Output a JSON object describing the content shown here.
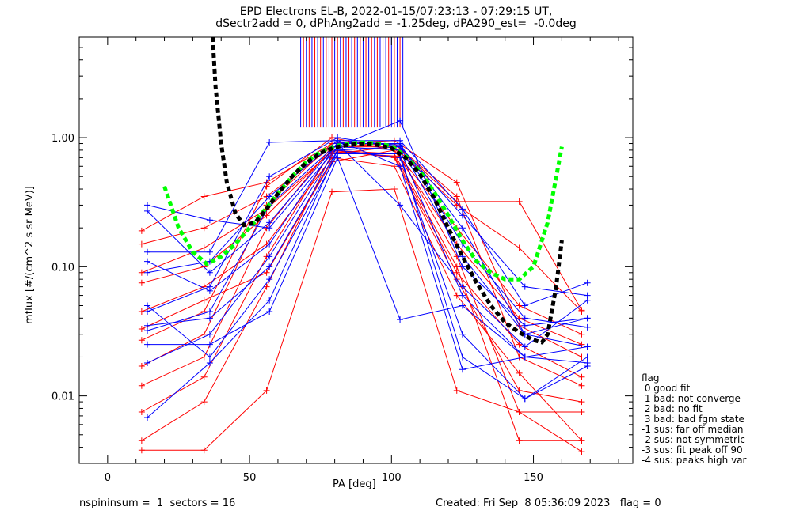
{
  "title_line1": "EPD Electrons EL-B, 2022-01-15/07:23:13 - 07:29:15 UT,",
  "title_line2": "dSectr2add = 0, dPhAng2add = -1.25deg, dPA290_est=  -0.0deg",
  "footer_left": "nspininsum =  1  sectors = 16",
  "footer_right": "Created: Fri Sep  8 05:36:09 2023   flag = 0",
  "legend": {
    "heading": "flag",
    "items": [
      " 0 good fit",
      " 1 bad: not converge",
      " 2 bad: no fit",
      " 3 bad: bad fgm state",
      "-1 sus: far off median",
      "-2 sus: not symmetric",
      "-3 sus: fit peak off 90",
      "-4 sus: peaks high var"
    ]
  },
  "chart_data": {
    "type": "line",
    "xlabel": "PA [deg]",
    "ylabel": "mflux [#/(cm^2 s sr MeV)]",
    "xlim": [
      -10,
      185
    ],
    "ylim": [
      0.003,
      6.0
    ],
    "yscale": "log",
    "xticks": [
      0,
      50,
      100,
      150
    ],
    "xtick_labels": [
      "0",
      "50",
      "100",
      "150"
    ],
    "yticks": [
      0.01,
      0.1,
      1.0
    ],
    "ytick_labels": [
      "0.01",
      "0.10",
      "1.00"
    ],
    "colors": {
      "red": "#ff0000",
      "blue": "#0000ff",
      "green": "#00ff00",
      "black": "#000000"
    },
    "pa_bins": [
      12,
      14,
      34,
      36,
      56,
      57,
      79,
      81,
      101,
      103,
      123,
      125,
      145,
      147,
      167,
      169
    ],
    "series": [
      {
        "color": "red",
        "x": [
          12,
          34,
          56,
          79,
          101,
          123,
          145,
          167
        ],
        "y": [
          0.0045,
          0.009,
          0.07,
          0.75,
          0.85,
          0.12,
          0.0075,
          0.0075
        ]
      },
      {
        "color": "red",
        "x": [
          12,
          34,
          56,
          79,
          101,
          123,
          145,
          167
        ],
        "y": [
          0.0075,
          0.014,
          0.12,
          0.8,
          0.7,
          0.08,
          0.011,
          0.009
        ]
      },
      {
        "color": "red",
        "x": [
          12,
          34,
          56,
          79,
          101,
          123,
          145,
          167
        ],
        "y": [
          0.012,
          0.02,
          0.2,
          0.85,
          0.9,
          0.35,
          0.02,
          0.012
        ]
      },
      {
        "color": "red",
        "x": [
          12,
          34,
          56,
          79,
          101,
          123,
          145,
          167
        ],
        "y": [
          0.017,
          0.03,
          0.3,
          0.9,
          0.95,
          0.45,
          0.035,
          0.02
        ]
      },
      {
        "color": "red",
        "x": [
          12,
          34,
          56,
          79,
          101,
          123,
          145,
          167
        ],
        "y": [
          0.027,
          0.045,
          0.42,
          1.0,
          0.8,
          0.2,
          0.05,
          0.03
        ]
      },
      {
        "color": "red",
        "x": [
          12,
          34,
          56,
          79,
          101,
          123,
          145,
          167
        ],
        "y": [
          0.045,
          0.07,
          0.15,
          0.7,
          0.6,
          0.06,
          0.015,
          0.0045
        ]
      },
      {
        "color": "red",
        "x": [
          12,
          34,
          56,
          79,
          101,
          123,
          145,
          167
        ],
        "y": [
          0.075,
          0.1,
          0.25,
          0.8,
          0.75,
          0.1,
          0.0045,
          0.0045
        ]
      },
      {
        "color": "red",
        "x": [
          12,
          34,
          56,
          79,
          101,
          123,
          145,
          167
        ],
        "y": [
          0.15,
          0.2,
          0.35,
          0.85,
          0.85,
          0.3,
          0.14,
          0.045
        ]
      },
      {
        "color": "red",
        "x": [
          12,
          34,
          56,
          79,
          101,
          123,
          145,
          167
        ],
        "y": [
          0.19,
          0.35,
          0.45,
          0.9,
          0.9,
          0.32,
          0.32,
          0.046
        ]
      },
      {
        "color": "red",
        "x": [
          12,
          34,
          56,
          79,
          101,
          123,
          145,
          167
        ],
        "y": [
          0.0038,
          0.0038,
          0.011,
          0.38,
          0.4,
          0.011,
          0.0075,
          0.0037
        ]
      },
      {
        "color": "red",
        "x": [
          12,
          34,
          56,
          79,
          101,
          123,
          145,
          167
        ],
        "y": [
          0.09,
          0.14,
          0.28,
          0.78,
          0.72,
          0.09,
          0.025,
          0.014
        ]
      },
      {
        "color": "red",
        "x": [
          12,
          34,
          56,
          79,
          101,
          123,
          145,
          167
        ],
        "y": [
          0.033,
          0.055,
          0.09,
          0.65,
          0.8,
          0.15,
          0.04,
          0.025
        ]
      },
      {
        "color": "blue",
        "x": [
          14,
          36,
          57,
          81,
          103,
          125,
          147,
          169
        ],
        "y": [
          0.0068,
          0.018,
          0.055,
          0.8,
          0.7,
          0.03,
          0.0095,
          0.017
        ]
      },
      {
        "color": "blue",
        "x": [
          14,
          36,
          57,
          81,
          103,
          125,
          147,
          169
        ],
        "y": [
          0.018,
          0.03,
          0.12,
          0.85,
          0.8,
          0.06,
          0.02,
          0.024
        ]
      },
      {
        "color": "blue",
        "x": [
          14,
          36,
          57,
          81,
          103,
          125,
          147,
          169
        ],
        "y": [
          0.032,
          0.045,
          0.3,
          0.9,
          0.9,
          0.15,
          0.04,
          0.034
        ]
      },
      {
        "color": "blue",
        "x": [
          14,
          36,
          57,
          81,
          103,
          125,
          147,
          169
        ],
        "y": [
          0.045,
          0.07,
          0.5,
          1.0,
          0.85,
          0.25,
          0.07,
          0.06
        ]
      },
      {
        "color": "blue",
        "x": [
          14,
          36,
          57,
          81,
          103,
          125,
          147,
          169
        ],
        "y": [
          0.09,
          0.11,
          0.35,
          0.95,
          0.95,
          0.28,
          0.05,
          0.075
        ]
      },
      {
        "color": "blue",
        "x": [
          14,
          36,
          57,
          81,
          103,
          125,
          147,
          169
        ],
        "y": [
          0.13,
          0.13,
          0.92,
          0.95,
          0.6,
          0.016,
          0.02,
          0.02
        ]
      },
      {
        "color": "blue",
        "x": [
          14,
          36,
          57,
          81,
          103,
          125,
          147,
          169
        ],
        "y": [
          0.3,
          0.23,
          0.2,
          0.85,
          1.35,
          0.1,
          0.035,
          0.04
        ]
      },
      {
        "color": "blue",
        "x": [
          14,
          36,
          57,
          81,
          103,
          125,
          147,
          169
        ],
        "y": [
          0.025,
          0.025,
          0.045,
          0.7,
          0.039,
          0.05,
          0.02,
          0.018
        ]
      },
      {
        "color": "blue",
        "x": [
          14,
          36,
          57,
          81,
          103,
          125,
          147,
          169
        ],
        "y": [
          0.05,
          0.02,
          0.08,
          0.75,
          0.75,
          0.02,
          0.0095,
          0.02
        ]
      },
      {
        "color": "blue",
        "x": [
          14,
          36,
          57,
          81,
          103,
          125,
          147,
          169
        ],
        "y": [
          0.27,
          0.09,
          0.22,
          0.9,
          0.3,
          0.07,
          0.024,
          0.055
        ]
      },
      {
        "color": "blue",
        "x": [
          14,
          36,
          57,
          81,
          103,
          125,
          147,
          169
        ],
        "y": [
          0.035,
          0.04,
          0.1,
          0.8,
          0.85,
          0.12,
          0.03,
          0.024
        ]
      },
      {
        "color": "blue",
        "x": [
          14,
          36,
          57,
          81,
          103,
          125,
          147,
          169
        ],
        "y": [
          0.11,
          0.065,
          0.15,
          0.92,
          0.88,
          0.2,
          0.03,
          0.04
        ]
      }
    ],
    "fits": [
      {
        "color": "green",
        "x": [
          20,
          25,
          30,
          35,
          40,
          45,
          50,
          55,
          60,
          65,
          70,
          75,
          80,
          85,
          90,
          95,
          100,
          105,
          110,
          115,
          120,
          125,
          130,
          135,
          140,
          145,
          150,
          155,
          160
        ],
        "y": [
          0.42,
          0.2,
          0.13,
          0.105,
          0.12,
          0.15,
          0.2,
          0.27,
          0.37,
          0.5,
          0.65,
          0.78,
          0.86,
          0.9,
          0.92,
          0.9,
          0.86,
          0.72,
          0.55,
          0.38,
          0.25,
          0.16,
          0.11,
          0.09,
          0.08,
          0.08,
          0.1,
          0.22,
          0.85
        ]
      },
      {
        "color": "black",
        "x": [
          37,
          38,
          40,
          42,
          45,
          48,
          52,
          56,
          60,
          65,
          70,
          75,
          80,
          85,
          90,
          95,
          100,
          105,
          110,
          115,
          120,
          125,
          130,
          135,
          140,
          145,
          150,
          153,
          155,
          158,
          160
        ],
        "y": [
          6.0,
          2.5,
          0.9,
          0.45,
          0.26,
          0.21,
          0.22,
          0.28,
          0.37,
          0.5,
          0.64,
          0.76,
          0.84,
          0.88,
          0.9,
          0.88,
          0.83,
          0.7,
          0.52,
          0.34,
          0.2,
          0.12,
          0.075,
          0.05,
          0.037,
          0.031,
          0.027,
          0.026,
          0.03,
          0.07,
          0.16
        ]
      }
    ],
    "spikes": {
      "x": [
        68,
        69,
        70,
        71,
        72,
        73,
        74,
        75,
        76,
        77,
        78,
        79,
        80,
        81,
        82,
        83,
        84,
        85,
        86,
        87,
        88,
        89,
        90,
        91,
        92,
        93,
        94,
        95,
        96,
        97,
        98,
        99,
        100,
        101,
        102,
        103,
        104
      ],
      "colors": [
        "blue",
        "red",
        "blue",
        "red",
        "blue",
        "red",
        "blue",
        "red",
        "blue",
        "red",
        "blue",
        "red",
        "blue",
        "red",
        "blue",
        "red",
        "blue",
        "red",
        "blue",
        "red",
        "blue",
        "red",
        "blue",
        "red",
        "blue",
        "red",
        "blue",
        "red",
        "blue",
        "red",
        "blue",
        "red",
        "blue",
        "red",
        "blue",
        "red",
        "blue"
      ],
      "y_low": 1.2,
      "y_high": 6.0
    }
  }
}
